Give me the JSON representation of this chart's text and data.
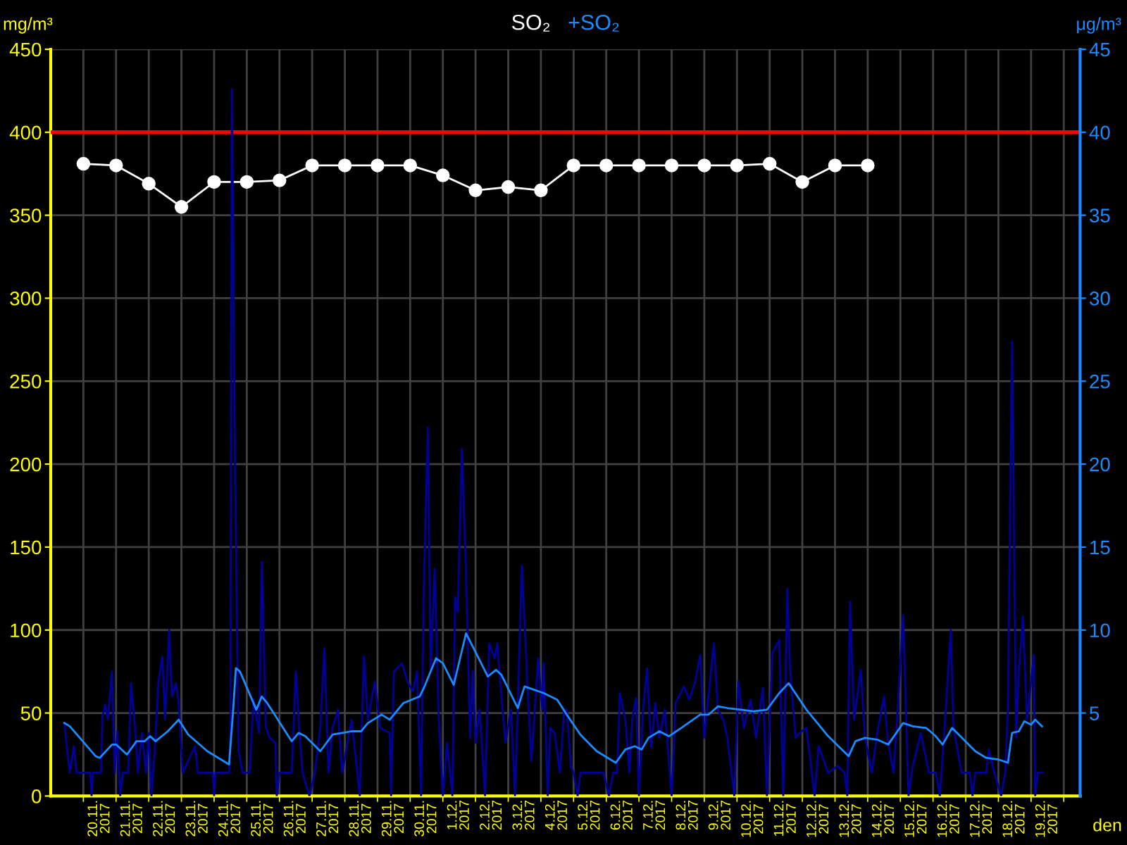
{
  "chart_data": {
    "type": "line",
    "xlabel": "den",
    "ylabel": "mg/m³",
    "y2label": "μg/m³",
    "xlim": [
      "2017-11-19T00:00",
      "2017-12-20T12:00"
    ],
    "xticks": [
      {
        "value": "2017-11-20",
        "label": null
      },
      {
        "value": "2017-11-21",
        "label": null
      },
      {
        "value": "2017-11-22",
        "label": null
      },
      {
        "value": "2017-11-23",
        "label": null
      },
      {
        "value": "2017-11-24",
        "label": null
      },
      {
        "value": "2017-11-25",
        "label": null
      },
      {
        "value": "2017-11-26",
        "label": null
      },
      {
        "value": "2017-11-27",
        "label": null
      },
      {
        "value": "2017-11-28",
        "label": null
      },
      {
        "value": "2017-11-29",
        "label": null
      },
      {
        "value": "2017-11-30",
        "label": null
      },
      {
        "value": "2017-12-01",
        "label": null
      },
      {
        "value": "2017-12-02",
        "label": null
      },
      {
        "value": "2017-12-03",
        "label": null
      },
      {
        "value": "2017-12-04",
        "label": null
      },
      {
        "value": "2017-12-05",
        "label": null
      },
      {
        "value": "2017-12-06",
        "label": null
      },
      {
        "value": "2017-12-07",
        "label": null
      },
      {
        "value": "2017-12-08",
        "label": null
      },
      {
        "value": "2017-12-09",
        "label": null
      },
      {
        "value": "2017-12-10",
        "label": null
      },
      {
        "value": "2017-12-11",
        "label": null
      },
      {
        "value": "2017-12-12",
        "label": null
      },
      {
        "value": "2017-12-13",
        "label": null
      },
      {
        "value": "2017-12-14",
        "label": null
      },
      {
        "value": "2017-12-15",
        "label": null
      },
      {
        "value": "2017-12-16",
        "label": null
      },
      {
        "value": "2017-12-17",
        "label": null
      },
      {
        "value": "2017-12-18",
        "label": null
      },
      {
        "value": "2017-12-19",
        "label": null
      },
      {
        "value": "2017-12-20",
        "label": null
      },
      {
        "value": "2017-11-20T12:00",
        "label": "20.11.\n2017"
      },
      {
        "value": "2017-11-21T12:00",
        "label": "21.11.\n2017"
      },
      {
        "value": "2017-11-22T12:00",
        "label": "22.11.\n2017"
      },
      {
        "value": "2017-11-23T12:00",
        "label": "23.11.\n2017"
      },
      {
        "value": "2017-11-24T12:00",
        "label": "24.11.\n2017"
      },
      {
        "value": "2017-11-25T12:00",
        "label": "25.11.\n2017"
      },
      {
        "value": "2017-11-26T12:00",
        "label": "26.11.\n2017"
      },
      {
        "value": "2017-11-27T12:00",
        "label": "27.11.\n2017"
      },
      {
        "value": "2017-11-28T12:00",
        "label": "28.11.\n2017"
      },
      {
        "value": "2017-11-29T12:00",
        "label": "29.11.\n2017"
      },
      {
        "value": "2017-11-30T12:00",
        "label": "30.11.\n2017"
      },
      {
        "value": "2017-12-01T12:00",
        "label": "1.12.\n2017"
      },
      {
        "value": "2017-12-02T12:00",
        "label": "2.12.\n2017"
      },
      {
        "value": "2017-12-03T12:00",
        "label": "3.12.\n2017"
      },
      {
        "value": "2017-12-04T12:00",
        "label": "4.12.\n2017"
      },
      {
        "value": "2017-12-05T12:00",
        "label": "5.12.\n2017"
      },
      {
        "value": "2017-12-06T12:00",
        "label": "6.12.\n2017"
      },
      {
        "value": "2017-12-07T12:00",
        "label": "7.12.\n2017"
      },
      {
        "value": "2017-12-08T12:00",
        "label": "8.12.\n2017"
      },
      {
        "value": "2017-12-09T12:00",
        "label": "9.12.\n2017"
      },
      {
        "value": "2017-12-10T12:00",
        "label": "10.12.\n2017"
      },
      {
        "value": "2017-12-11T12:00",
        "label": "11.12.\n2017"
      },
      {
        "value": "2017-12-12T12:00",
        "label": "12.12.\n2017"
      },
      {
        "value": "2017-12-13T12:00",
        "label": "13.12.\n2017"
      },
      {
        "value": "2017-12-14T12:00",
        "label": "14.12.\n2017"
      },
      {
        "value": "2017-12-15T12:00",
        "label": "15.12.\n2017"
      },
      {
        "value": "2017-12-16T12:00",
        "label": "16.12.\n2017"
      },
      {
        "value": "2017-12-17T12:00",
        "label": "17.12.\n2017"
      },
      {
        "value": "2017-12-18T12:00",
        "label": "18.12.\n2017"
      },
      {
        "value": "2017-12-19T12:00",
        "label": "19.12.\n2017"
      }
    ],
    "ylim": [
      0,
      450
    ],
    "yticks": [
      0,
      50,
      100,
      150,
      200,
      250,
      300,
      350,
      400,
      450
    ],
    "y2lim": [
      0,
      45
    ],
    "y2ticks": [
      5,
      10,
      15,
      20,
      25,
      30,
      35,
      40,
      45
    ],
    "grid": true,
    "legend": "top",
    "ref_lines": [
      {
        "axis": "y",
        "value": 400,
        "color": "#ff0000"
      }
    ],
    "series": [
      {
        "name": "SO₂",
        "color": "#ffffff",
        "marker": "circle",
        "x": [
          "2017-11-20",
          "2017-11-21",
          "2017-11-22",
          "2017-11-23",
          "2017-11-24",
          "2017-11-25",
          "2017-11-26",
          "2017-11-27",
          "2017-11-28",
          "2017-11-29",
          "2017-11-30",
          "2017-12-01",
          "2017-12-02",
          "2017-12-03",
          "2017-12-04",
          "2017-12-05",
          "2017-12-06",
          "2017-12-07",
          "2017-12-08",
          "2017-12-09",
          "2017-12-10",
          "2017-12-11",
          "2017-12-12",
          "2017-12-13",
          "2017-12-14"
        ],
        "values": [
          381,
          380,
          369,
          355,
          370,
          370,
          371,
          380,
          380,
          380,
          380,
          374,
          365,
          367,
          365,
          380,
          380,
          380,
          380,
          380,
          380,
          381,
          370,
          380,
          380
        ]
      },
      {
        "color": "#00009c",
        "axis": "y2",
        "x": [
          "2017-11-19T10:00",
          "2017-11-19T12:00",
          "2017-11-19T14:00",
          "2017-11-19T17:00",
          "2017-11-19T19:00",
          "2017-11-20T05:00",
          "2017-11-20T06:00",
          "2017-11-20T07:00",
          "2017-11-20T13:00",
          "2017-11-20T14:00",
          "2017-11-20T16:00",
          "2017-11-20T18:00",
          "2017-11-20T21:00",
          "2017-11-20T23:00",
          "2017-11-21T01:00",
          "2017-11-21T03:00",
          "2017-11-21T05:00",
          "2017-11-21T09:00",
          "2017-11-21T11:00",
          "2017-11-21T14:00",
          "2017-11-21T16:00",
          "2017-11-21T19:00",
          "2017-11-21T22:00",
          "2017-11-22T00:00",
          "2017-11-22T02:00",
          "2017-11-22T05:00",
          "2017-11-22T07:00",
          "2017-11-22T10:00",
          "2017-11-22T12:00",
          "2017-11-22T15:00",
          "2017-11-22T17:00",
          "2017-11-22T20:00",
          "2017-11-22T22:00",
          "2017-11-23T01:00",
          "2017-11-23T10:00",
          "2017-11-23T12:00",
          "2017-11-23T23:00",
          "2017-11-24T00:00",
          "2017-11-24T01:00",
          "2017-11-24T11:00",
          "2017-11-24T12:00",
          "2017-11-24T13:00",
          "2017-11-24T14:00",
          "2017-11-24T15:00",
          "2017-11-24T18:00",
          "2017-11-24T21:00",
          "2017-11-25T02:00",
          "2017-11-25T05:00",
          "2017-11-25T09:00",
          "2017-11-25T11:00",
          "2017-11-25T14:00",
          "2017-11-25T17:00",
          "2017-11-25T21:00",
          "2017-11-25T22:00",
          "2017-11-26T00:00",
          "2017-11-26T09:00",
          "2017-11-26T12:00",
          "2017-11-26T15:00",
          "2017-11-26T17:00",
          "2017-11-26T22:00",
          "2017-11-27T02:00",
          "2017-11-27T06:00",
          "2017-11-27T09:00",
          "2017-11-27T12:00",
          "2017-11-27T15:00",
          "2017-11-27T19:00",
          "2017-11-27T22:00",
          "2017-11-28T05:00",
          "2017-11-28T11:00",
          "2017-11-28T14:00",
          "2017-11-28T17:00",
          "2017-11-28T22:00",
          "2017-11-29T02:00",
          "2017-11-29T09:00",
          "2017-11-29T10:00",
          "2017-11-29T12:00",
          "2017-11-29T18:00",
          "2017-11-29T22:00",
          "2017-11-30T02:00",
          "2017-11-30T05:00",
          "2017-11-30T08:00",
          "2017-11-30T10:00",
          "2017-11-30T13:00",
          "2017-11-30T15:00",
          "2017-11-30T18:00",
          "2017-11-30T21:00",
          "2017-12-01T00:00",
          "2017-12-01T03:00",
          "2017-12-01T07:00",
          "2017-12-01T09:00",
          "2017-12-01T11:00",
          "2017-12-01T14:00",
          "2017-12-01T17:00",
          "2017-12-01T20:00",
          "2017-12-01T22:00",
          "2017-12-02T00:00",
          "2017-12-02T03:00",
          "2017-12-02T07:00",
          "2017-12-02T10:00",
          "2017-12-02T14:00",
          "2017-12-02T16:00",
          "2017-12-02T19:00",
          "2017-12-02T22:00",
          "2017-12-03T02:00",
          "2017-12-03T05:00",
          "2017-12-03T07:00",
          "2017-12-03T10:00",
          "2017-12-03T14:00",
          "2017-12-03T17:00",
          "2017-12-03T22:00",
          "2017-12-04T01:00",
          "2017-12-04T02:00",
          "2017-12-04T05:00",
          "2017-12-04T07:00",
          "2017-12-04T10:00",
          "2017-12-04T14:00",
          "2017-12-04T17:00",
          "2017-12-04T19:00",
          "2017-12-04T22:00",
          "2017-12-05T00:00",
          "2017-12-05T03:00",
          "2017-12-05T05:00",
          "2017-12-05T22:00",
          "2017-12-06T02:00",
          "2017-12-06T05:00",
          "2017-12-06T08:00",
          "2017-12-06T10:00",
          "2017-12-06T14:00",
          "2017-12-06T17:00",
          "2017-12-06T19:00",
          "2017-12-06T22:00",
          "2017-12-07T00:00",
          "2017-12-07T03:00",
          "2017-12-07T06:00",
          "2017-12-07T09:00",
          "2017-12-07T12:00",
          "2017-12-07T15:00",
          "2017-12-07T19:00",
          "2017-12-08T00:00",
          "2017-12-08T03:00",
          "2017-12-08T09:00",
          "2017-12-08T13:00",
          "2017-12-08T17:00",
          "2017-12-08T21:00",
          "2017-12-09T00:00",
          "2017-12-09T07:00",
          "2017-12-09T10:00",
          "2017-12-09T14:00",
          "2017-12-09T17:00",
          "2017-12-09T22:00",
          "2017-12-10T01:00",
          "2017-12-10T05:00",
          "2017-12-10T10:00",
          "2017-12-10T14:00",
          "2017-12-10T19:00",
          "2017-12-10T22:00",
          "2017-12-11T02:00",
          "2017-12-11T07:00",
          "2017-12-11T10:00",
          "2017-12-11T13:00",
          "2017-12-11T15:00",
          "2017-12-11T19:00",
          "2017-12-11T22:00",
          "2017-12-12T03:00",
          "2017-12-12T09:00",
          "2017-12-12T12:00",
          "2017-12-12T19:00",
          "2017-12-13T02:00",
          "2017-12-13T07:00",
          "2017-12-13T09:00",
          "2017-12-13T11:00",
          "2017-12-13T14:00",
          "2017-12-13T19:00",
          "2017-12-13T22:00",
          "2017-12-14T03:00",
          "2017-12-14T07:00",
          "2017-12-14T12:00",
          "2017-12-14T15:00",
          "2017-12-14T19:00",
          "2017-12-14T22:00",
          "2017-12-15T02:00",
          "2017-12-15T06:00",
          "2017-12-15T09:00",
          "2017-12-15T15:00",
          "2017-12-15T21:00",
          "2017-12-16T02:00",
          "2017-12-16T05:00",
          "2017-12-16T08:00",
          "2017-12-16T13:00",
          "2017-12-16T15:00",
          "2017-12-16T21:00",
          "2017-12-17T03:00",
          "2017-12-17T05:00",
          "2017-12-17T07:00",
          "2017-12-17T15:00",
          "2017-12-17T17:00",
          "2017-12-17T21:00",
          "2017-12-18T02:00",
          "2017-12-18T05:00",
          "2017-12-18T07:00",
          "2017-12-18T10:00",
          "2017-12-18T13:00",
          "2017-12-18T15:00",
          "2017-12-18T18:00",
          "2017-12-18T21:00",
          "2017-12-19T00:00",
          "2017-12-19T02:00",
          "2017-12-19T03:00",
          "2017-12-19T05:00",
          "2017-12-19T08:00"
        ],
        "values": [
          4.4,
          2.8,
          1.4,
          3.0,
          1.4,
          1.4,
          0,
          1.4,
          1.4,
          4.8,
          5.5,
          4.6,
          7.5,
          1.4,
          3.9,
          0,
          1.4,
          1.4,
          6.8,
          4.1,
          1.4,
          3.8,
          1.4,
          3.8,
          0,
          3.5,
          6.8,
          8.4,
          4.6,
          10.0,
          6.0,
          6.8,
          5.6,
          1.4,
          3.0,
          1.4,
          1.4,
          0,
          1.4,
          1.4,
          3.8,
          42.6,
          33.9,
          22.6,
          2.7,
          1.4,
          1.4,
          5.8,
          3.8,
          14.1,
          4.1,
          3.5,
          3.2,
          0,
          1.4,
          1.4,
          7.5,
          3.5,
          1.4,
          0,
          1.4,
          4.1,
          8.9,
          1.4,
          4.1,
          5.2,
          1.4,
          4.6,
          0,
          8.4,
          4.6,
          6.9,
          4.1,
          3.8,
          0,
          7.5,
          8.0,
          6.9,
          6.3,
          7.5,
          0,
          12.5,
          22.2,
          7.5,
          13.7,
          4.6,
          0,
          3.2,
          0,
          12.0,
          11.1,
          20.9,
          13.5,
          3.5,
          7.5,
          3.2,
          5.2,
          0,
          9.2,
          8.3,
          9.2,
          6.0,
          3.2,
          5.2,
          0,
          5.3,
          13.9,
          6.9,
          2.1,
          8.3,
          5.2,
          8.0,
          0,
          4.1,
          3.8,
          1.4,
          5.2,
          5.2,
          1.8,
          1.4,
          0,
          1.4,
          1.4,
          0,
          1.4,
          1.4,
          6.2,
          4.6,
          1.4,
          4.6,
          5.9,
          0,
          5.2,
          7.7,
          2.9,
          5.6,
          3.5,
          5.2,
          0,
          5.6,
          6.6,
          5.8,
          6.8,
          8.5,
          3.5,
          9.2,
          5.2,
          4.6,
          3.5,
          0,
          6.9,
          4.1,
          5.8,
          3.5,
          6.5,
          0,
          8.6,
          9.4,
          0,
          12.5,
          7.7,
          3.5,
          3.8,
          4.1,
          0,
          3.0,
          1.4,
          1.8,
          1.4,
          0,
          11.7,
          4.6,
          7.6,
          3.5,
          1.4,
          3.8,
          6.0,
          3.2,
          1.4,
          5.2,
          10.9,
          0,
          1.8,
          3.8,
          1.4,
          1.4,
          0,
          3.5,
          10.0,
          4.1,
          1.4,
          1.4,
          0,
          1.4,
          1.4,
          2.8,
          1.4,
          0,
          1.4,
          5.2,
          27.4,
          3.5,
          7.5,
          10.8,
          4.6,
          6.9,
          8.5,
          0,
          1.4,
          1.4
        ]
      },
      {
        "name": "+SO₂",
        "color": "#1a8cff",
        "axis": "y2",
        "x": [
          "2017-11-19T10:00",
          "2017-11-19T14:00",
          "2017-11-20T09:00",
          "2017-11-20T12:00",
          "2017-11-20T21:00",
          "2017-11-21T00:00",
          "2017-11-21T08:00",
          "2017-11-21T15:00",
          "2017-11-21T21:00",
          "2017-11-22T01:00",
          "2017-11-22T05:00",
          "2017-11-22T14:00",
          "2017-11-22T22:00",
          "2017-11-23T05:00",
          "2017-11-23T19:00",
          "2017-11-24T09:00",
          "2017-11-24T11:00",
          "2017-11-24T14:00",
          "2017-11-24T16:00",
          "2017-11-24T19:00",
          "2017-11-25T07:00",
          "2017-11-25T11:00",
          "2017-11-25T15:00",
          "2017-11-26T09:00",
          "2017-11-26T14:00",
          "2017-11-26T19:00",
          "2017-11-27T06:00",
          "2017-11-27T15:00",
          "2017-11-28T05:00",
          "2017-11-28T12:00",
          "2017-11-28T17:00",
          "2017-11-29T03:00",
          "2017-11-29T09:00",
          "2017-11-29T19:00",
          "2017-11-30T07:00",
          "2017-11-30T10:00",
          "2017-11-30T19:00",
          "2017-12-01T00:00",
          "2017-12-01T08:00",
          "2017-12-01T17:00",
          "2017-12-01T22:00",
          "2017-12-02T09:00",
          "2017-12-02T15:00",
          "2017-12-02T19:00",
          "2017-12-03T07:00",
          "2017-12-03T12:00",
          "2017-12-04T02:00",
          "2017-12-04T12:00",
          "2017-12-04T19:00",
          "2017-12-05T05:00",
          "2017-12-05T17:00",
          "2017-12-06T07:00",
          "2017-12-06T14:00",
          "2017-12-06T21:00",
          "2017-12-07T02:00",
          "2017-12-07T07:00",
          "2017-12-07T15:00",
          "2017-12-07T22:00",
          "2017-12-08T07:00",
          "2017-12-08T21:00",
          "2017-12-09T03:00",
          "2017-12-09T10:00",
          "2017-12-09T17:00",
          "2017-12-10T03:00",
          "2017-12-10T12:00",
          "2017-12-10T22:00",
          "2017-12-11T07:00",
          "2017-12-11T14:00",
          "2017-12-12T03:00",
          "2017-12-12T19:00",
          "2017-12-13T10:00",
          "2017-12-13T15:00",
          "2017-12-13T22:00",
          "2017-12-14T07:00",
          "2017-12-14T15:00",
          "2017-12-14T21:00",
          "2017-12-15T02:00",
          "2017-12-15T09:00",
          "2017-12-15T19:00",
          "2017-12-16T02:00",
          "2017-12-16T07:00",
          "2017-12-16T14:00",
          "2017-12-17T07:00",
          "2017-12-17T15:00",
          "2017-12-18T00:00",
          "2017-12-18T07:00",
          "2017-12-18T10:00",
          "2017-12-18T15:00",
          "2017-12-18T19:00",
          "2017-12-19T00:00",
          "2017-12-19T03:00",
          "2017-12-19T08:00"
        ],
        "values": [
          4.4,
          4.2,
          2.4,
          2.3,
          3.1,
          3.1,
          2.5,
          3.3,
          3.3,
          3.6,
          3.3,
          3.9,
          4.6,
          3.7,
          2.7,
          2.0,
          1.9,
          5.2,
          7.7,
          7.5,
          5.2,
          6.0,
          5.6,
          3.3,
          3.8,
          3.6,
          2.7,
          3.7,
          3.9,
          3.9,
          4.4,
          4.9,
          4.6,
          5.6,
          6.0,
          6.5,
          8.3,
          8.0,
          6.7,
          9.8,
          9.0,
          7.2,
          7.6,
          7.3,
          5.3,
          6.6,
          6.2,
          5.8,
          4.9,
          3.7,
          2.7,
          2.0,
          2.8,
          3.0,
          2.8,
          3.5,
          3.9,
          3.6,
          4.1,
          4.9,
          4.9,
          5.4,
          5.3,
          5.2,
          5.1,
          5.2,
          6.2,
          6.8,
          5.2,
          3.6,
          2.4,
          3.3,
          3.5,
          3.4,
          3.1,
          3.8,
          4.4,
          4.2,
          4.1,
          3.6,
          3.1,
          4.1,
          2.7,
          2.3,
          2.2,
          2.0,
          3.8,
          3.9,
          4.5,
          4.3,
          4.6,
          4.2
        ]
      }
    ]
  }
}
